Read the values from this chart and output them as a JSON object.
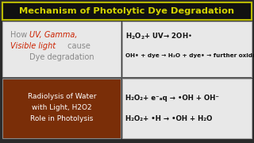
{
  "bg_color": "#2a2a2a",
  "title": "Mechanism of Photolytic Dye Degradation",
  "title_color": "#d4d400",
  "title_bg": "#111111",
  "title_border": "#b8b800",
  "top_left_bg": "#e8e8e8",
  "top_right_bg": "#e8e8e8",
  "bottom_left_bg": "#7a2e08",
  "bottom_right_bg": "#e8e8e8",
  "bottom_left_color": "#ffffff",
  "bottom_left_text_line1": "Radiolysis of Water",
  "bottom_left_text_line2": "with Light, H2O2",
  "bottom_left_text_line3": "Role in Photolysis",
  "eq_color": "#111111",
  "gray_color": "#888888",
  "red_color": "#cc2200"
}
